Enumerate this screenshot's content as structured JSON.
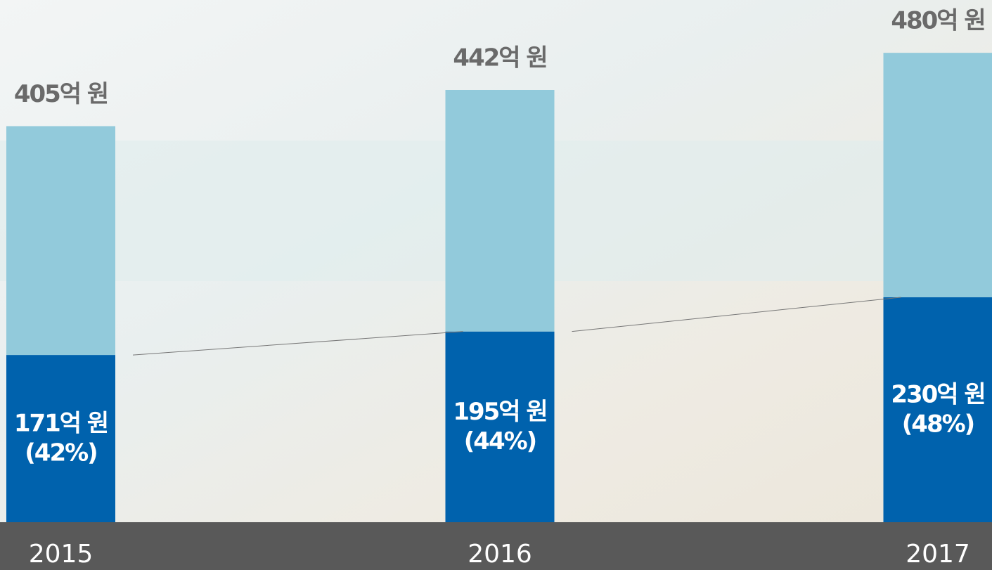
{
  "chart_data": {
    "type": "stacked_bar",
    "categories": [
      "2015",
      "2016",
      "2017"
    ],
    "series": [
      {
        "color": "#0062ad",
        "values": [
          171,
          195,
          230
        ],
        "value_labels": [
          "171억 원",
          "195억 원",
          "230억 원"
        ],
        "shares": [
          42,
          44,
          48
        ],
        "share_labels": [
          "(42%)",
          "(44%)",
          "(48%)"
        ]
      },
      {
        "color": "#92cadb",
        "values": [
          234,
          247,
          250
        ]
      }
    ],
    "totals": [
      405,
      442,
      480
    ],
    "total_labels": [
      "405억 원",
      "442억 원",
      "480억 원"
    ],
    "ylim": [
      0,
      534
    ]
  }
}
